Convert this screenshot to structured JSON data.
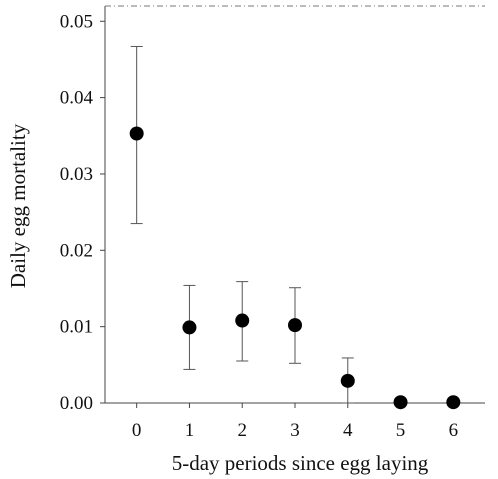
{
  "chart_data": {
    "type": "scatter",
    "title": "",
    "xlabel": "5-day periods since egg laying",
    "ylabel": "Daily egg mortality",
    "xlim": [
      -0.6,
      6.6
    ],
    "ylim": [
      0.0,
      0.052
    ],
    "x_ticks": [
      "0",
      "1",
      "2",
      "3",
      "4",
      "5",
      "6"
    ],
    "y_ticks": [
      "0.00",
      "0.01",
      "0.02",
      "0.03",
      "0.04",
      "0.05"
    ],
    "points": [
      {
        "x": 0,
        "y": 0.0353,
        "lower": 0.0235,
        "upper": 0.0467
      },
      {
        "x": 1,
        "y": 0.0099,
        "lower": 0.0044,
        "upper": 0.0154
      },
      {
        "x": 2,
        "y": 0.0108,
        "lower": 0.0055,
        "upper": 0.0159
      },
      {
        "x": 3,
        "y": 0.0102,
        "lower": 0.0052,
        "upper": 0.0151
      },
      {
        "x": 4,
        "y": 0.0029,
        "lower": 0.0,
        "upper": 0.0059
      },
      {
        "x": 5,
        "y": 0.0001,
        "lower": 0.0,
        "upper": 0.0001
      },
      {
        "x": 6,
        "y": 0.0001,
        "lower": 0.0,
        "upper": 0.0001
      }
    ],
    "grid": false,
    "legend": "none",
    "marker_color": "#000000"
  }
}
